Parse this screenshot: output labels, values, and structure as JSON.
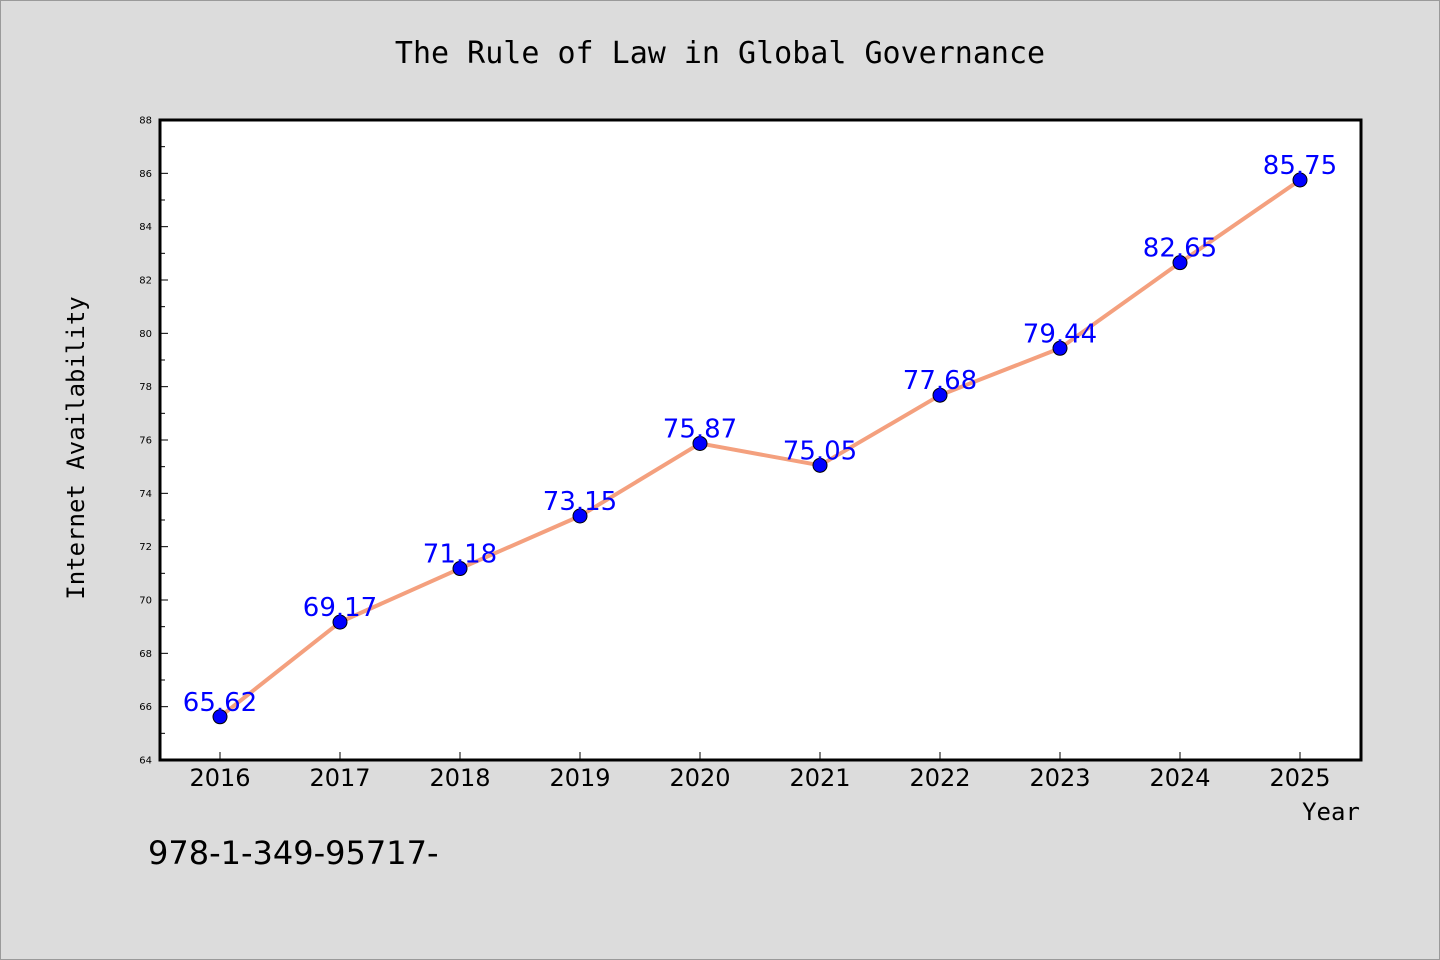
{
  "chart_data": {
    "type": "line",
    "title": "The Rule of Law in Global Governance",
    "xlabel": "Year",
    "ylabel": "Internet Availability",
    "x": [
      "2016",
      "2017",
      "2018",
      "2019",
      "2020",
      "2021",
      "2022",
      "2023",
      "2024",
      "2025"
    ],
    "series": [
      {
        "values": [
          65.62,
          69.17,
          71.18,
          73.15,
          75.87,
          75.05,
          77.68,
          79.44,
          82.65,
          85.75
        ]
      }
    ],
    "data_labels": [
      "65.62",
      "69.17",
      "71.18",
      "73.15",
      "75.87",
      "75.05",
      "77.68",
      "79.44",
      "82.65",
      "85.75"
    ],
    "ylim": [
      64,
      88
    ],
    "yticks": [
      64,
      66,
      68,
      70,
      72,
      74,
      76,
      78,
      80,
      82,
      84,
      86,
      88
    ],
    "grid": false,
    "legend": "none",
    "colors": {
      "line": "#f4a07e",
      "marker": "#0000ff",
      "label": "#0000ff",
      "background": "#dcdcdc",
      "plot_bg": "#ffffff"
    }
  },
  "footer": {
    "text": "978-1-349-95717-"
  }
}
